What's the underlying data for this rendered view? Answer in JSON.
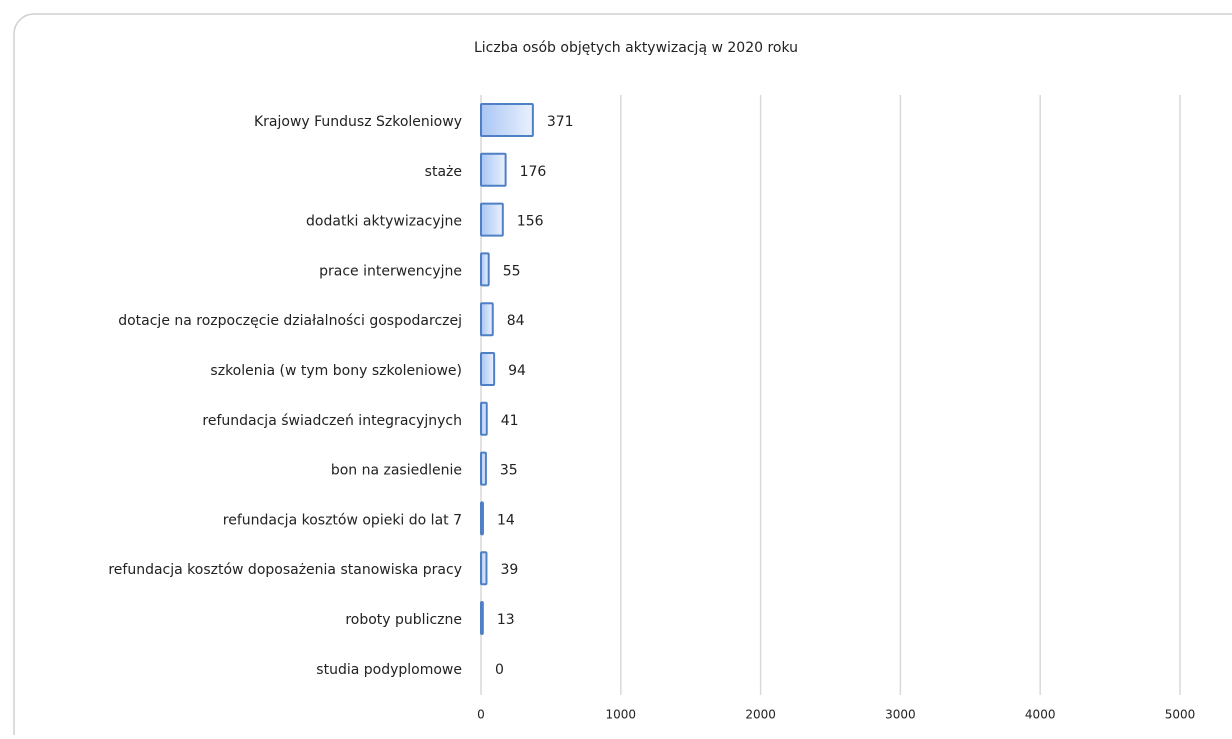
{
  "chart_data": {
    "type": "barh",
    "title": "Liczba osób objętych aktywizacją w 2020 roku",
    "categories": [
      "Krajowy Fundusz Szkoleniowy",
      "staże",
      "dodatki aktywizacyjne",
      "prace interwencyjne",
      "dotacje na rozpoczęcie działalności gospodarczej",
      "szkolenia (w tym bony szkoleniowe)",
      "refundacja świadczeń integracyjnych",
      "bon na zasiedlenie",
      "refundacja kosztów opieki do lat 7",
      "refundacja kosztów doposażenia stanowiska pracy",
      "roboty publiczne",
      "studia podyplomowe"
    ],
    "values": [
      371,
      176,
      156,
      55,
      84,
      94,
      41,
      35,
      14,
      39,
      13,
      0
    ],
    "color": "#4f7fc4",
    "xlim": [
      0,
      5000
    ],
    "xticks": [
      0,
      1000,
      2000,
      3000,
      4000,
      5000
    ],
    "grid": true
  }
}
